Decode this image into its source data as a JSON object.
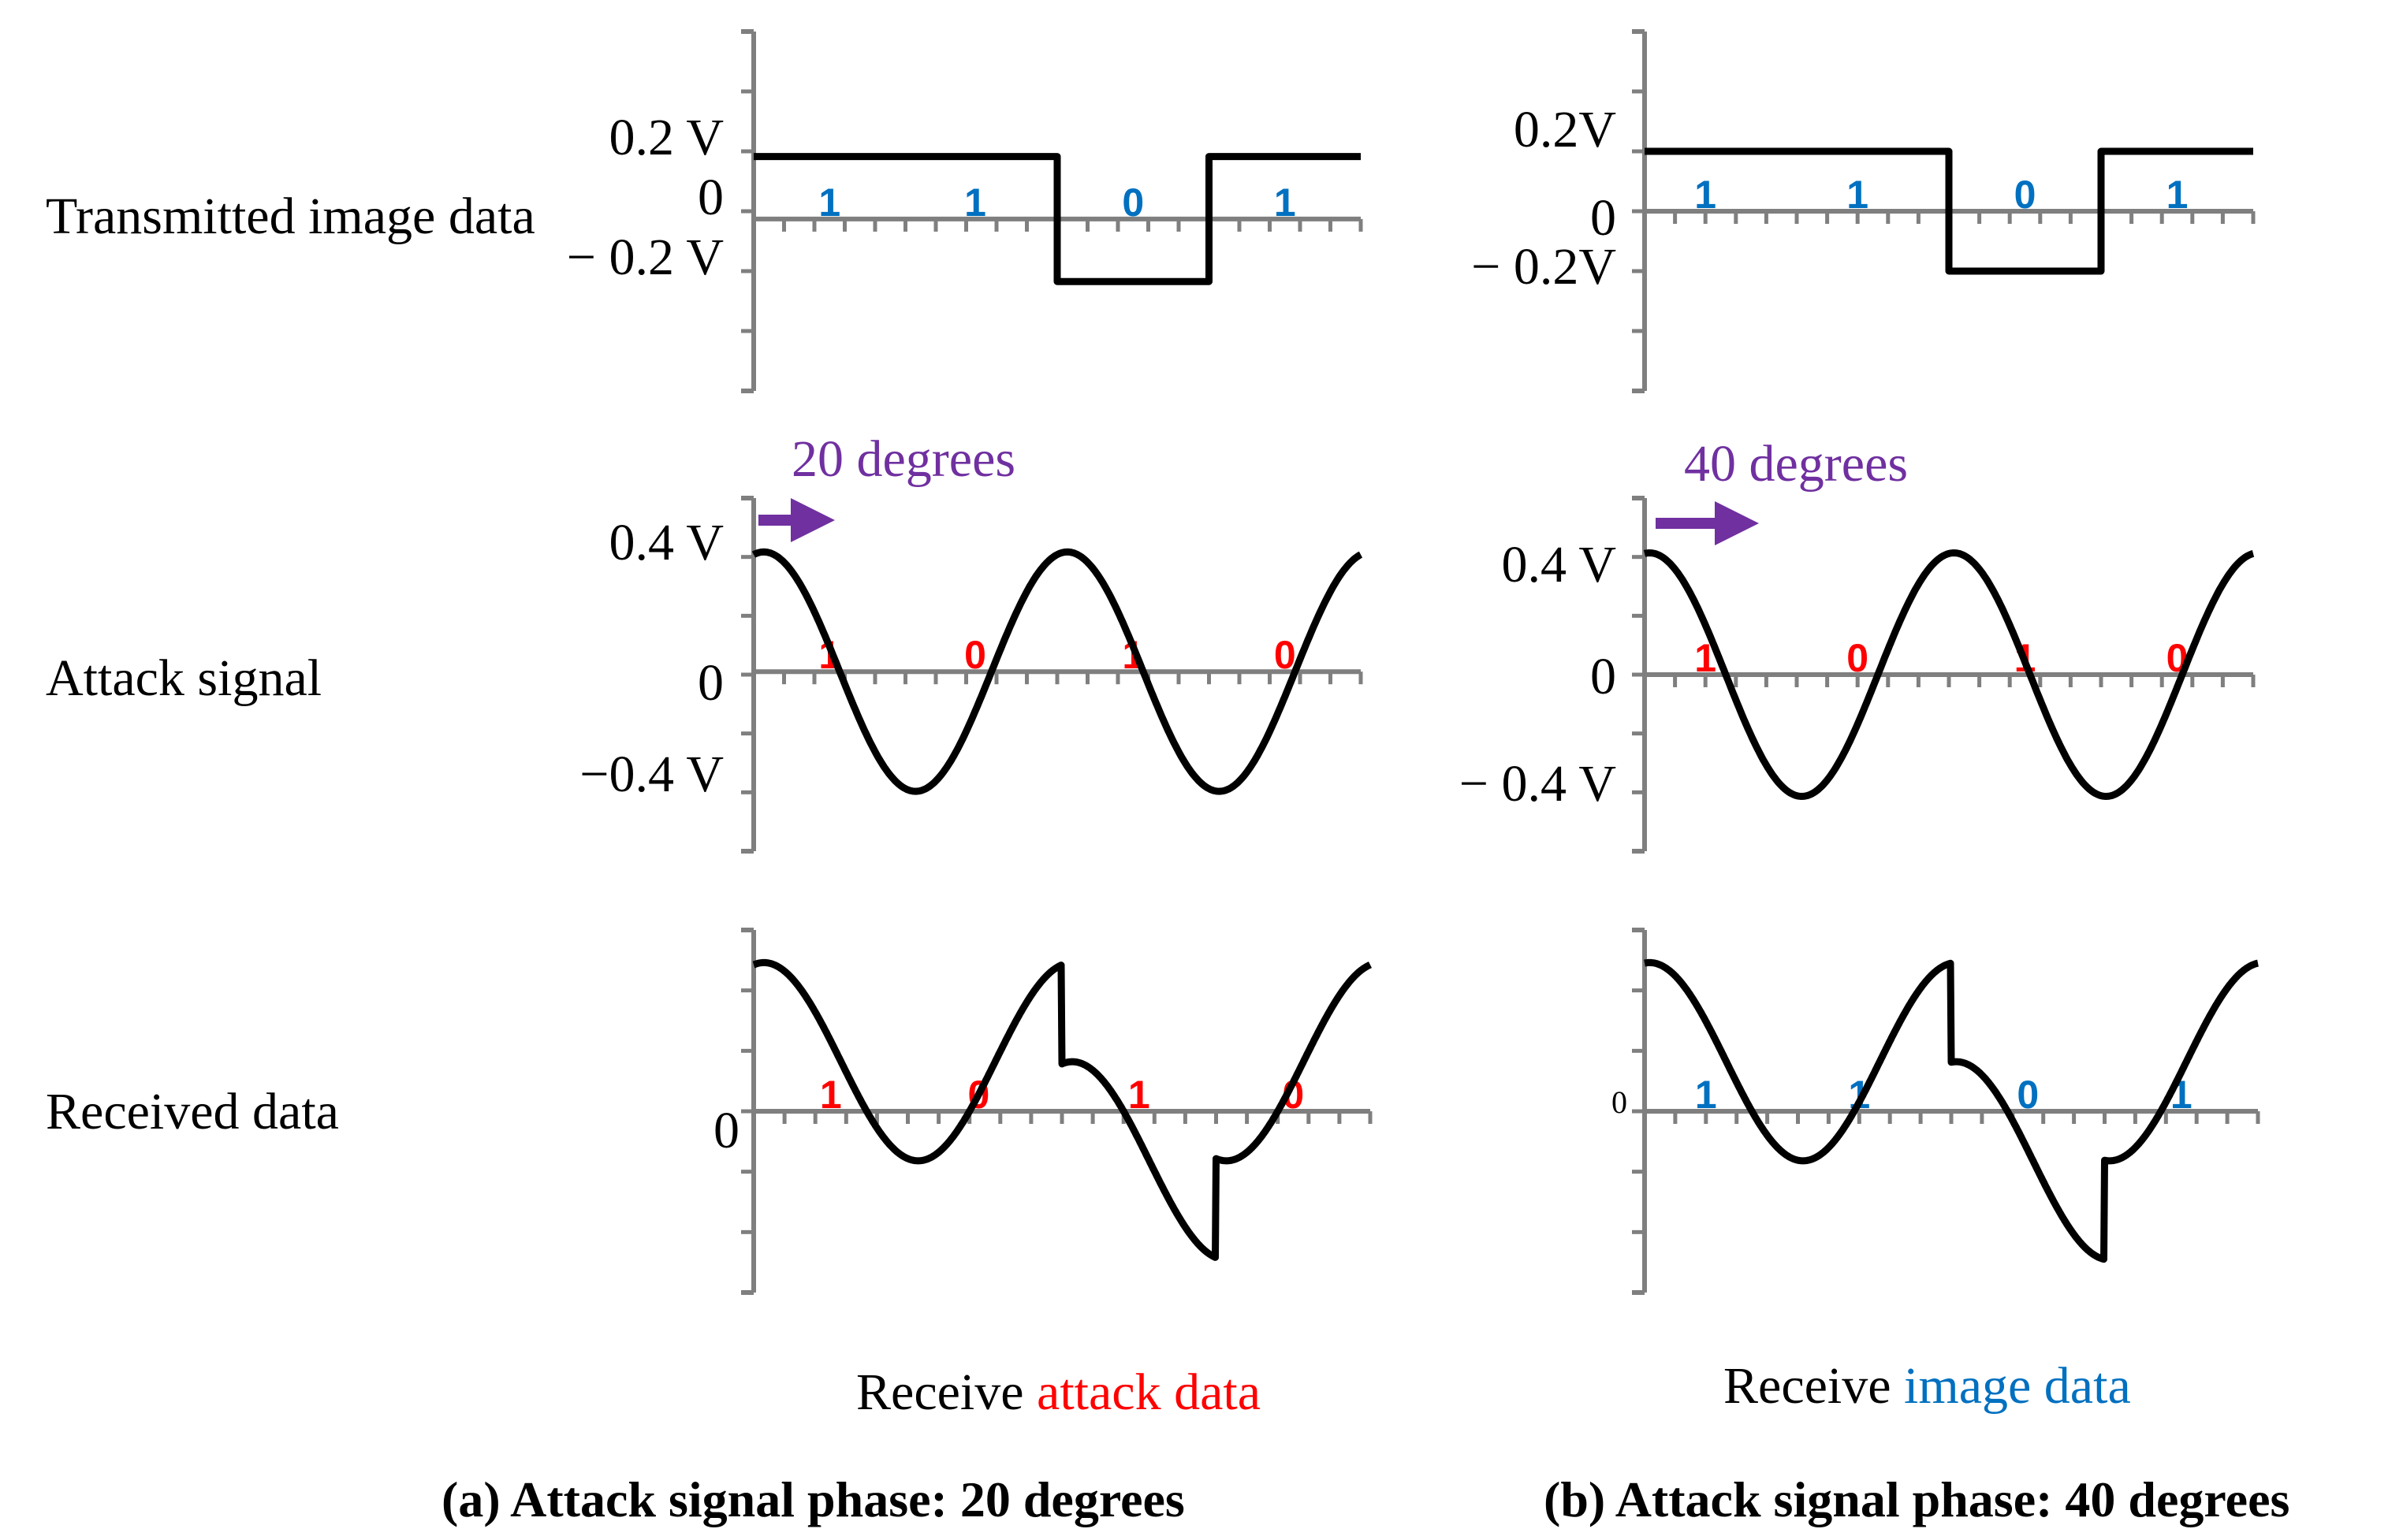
{
  "colors": {
    "axis": "#7f7f7f",
    "trace": "#000000",
    "image_bit": "#0070c0",
    "attack_bit": "#ff0000",
    "phase": "#7030a0",
    "text": "#000000"
  },
  "rows": {
    "transmitted": "Transmitted image data",
    "attack": "Attack signal",
    "received": "Received data"
  },
  "notes": {
    "a": {
      "prefix": "Receive ",
      "highlight": "attack data"
    },
    "b": {
      "prefix": "Receive ",
      "highlight": "image data"
    }
  },
  "captions": {
    "a": "(a) Attack signal phase: 20 degrees",
    "b": "(b) Attack signal phase: 40 degrees"
  },
  "chart_data": [
    {
      "id": "a-transmitted",
      "type": "line",
      "panel": "a",
      "title": "Transmitted image data",
      "ylabels": [
        "0.2 V",
        "0",
        "− 0.2 V"
      ],
      "yticks": [
        0.2,
        0,
        -0.2
      ],
      "ylim": [
        -0.55,
        0.6
      ],
      "xlim": [
        0,
        4
      ],
      "bits": [
        "1",
        "1",
        "0",
        "1"
      ],
      "bit_color": "image",
      "x": [
        0,
        2,
        2,
        3,
        3,
        4
      ],
      "y": [
        0.2,
        0.2,
        -0.2,
        -0.2,
        0.2,
        0.2
      ]
    },
    {
      "id": "b-transmitted",
      "type": "line",
      "panel": "b",
      "title": "Transmitted image data",
      "ylabels": [
        "0.2V",
        "0",
        "− 0.2V"
      ],
      "yticks": [
        0.2,
        0,
        -0.2
      ],
      "ylim": [
        -0.6,
        0.6
      ],
      "xlim": [
        0,
        4
      ],
      "bits": [
        "1",
        "1",
        "0",
        "1"
      ],
      "bit_color": "image",
      "x": [
        0,
        2,
        2,
        3,
        3,
        4
      ],
      "y": [
        0.2,
        0.2,
        -0.2,
        -0.2,
        0.2,
        0.2
      ]
    },
    {
      "id": "a-attack",
      "type": "line",
      "panel": "a",
      "title": "Attack signal",
      "ylabels": [
        "0.4 V",
        "0",
        "−0.4 V"
      ],
      "yticks": [
        0.4,
        0,
        -0.4
      ],
      "ylim": [
        -0.6,
        0.58
      ],
      "xlim": [
        0,
        4
      ],
      "phase_label": "20 degrees",
      "phase_degrees": 20,
      "bits": [
        "1",
        "0",
        "1",
        "0"
      ],
      "bit_color": "attack",
      "amplitude": 0.4,
      "period": 2
    },
    {
      "id": "b-attack",
      "type": "line",
      "panel": "b",
      "title": "Attack signal",
      "ylabels": [
        "0.4 V",
        "0",
        "− 0.4 V"
      ],
      "yticks": [
        0.4,
        0,
        -0.4
      ],
      "ylim": [
        -0.58,
        0.58
      ],
      "xlim": [
        0,
        4
      ],
      "phase_label": "40 degrees",
      "phase_degrees": 40,
      "bits": [
        "1",
        "0",
        "1",
        "0"
      ],
      "bit_color": "attack",
      "amplitude": 0.4,
      "period": 2
    },
    {
      "id": "a-received",
      "type": "line",
      "panel": "a",
      "title": "Received data",
      "ylabels": [
        "0"
      ],
      "yticks": [
        0
      ],
      "ylim": [
        -0.6,
        0.6
      ],
      "xlim": [
        0,
        4
      ],
      "bits": [
        "1",
        "0",
        "1",
        "0"
      ],
      "bit_color": "attack",
      "amplitude": 0.4,
      "period": 2
    },
    {
      "id": "b-received",
      "type": "line",
      "panel": "b",
      "title": "Received data",
      "ylabels": [
        "0"
      ],
      "yticks": [
        0
      ],
      "ylim": [
        -0.6,
        0.6
      ],
      "xlim": [
        0,
        4
      ],
      "bits": [
        "1",
        "1",
        "0",
        "1"
      ],
      "bit_color": "image",
      "amplitude": 0.4,
      "period": 2
    }
  ]
}
